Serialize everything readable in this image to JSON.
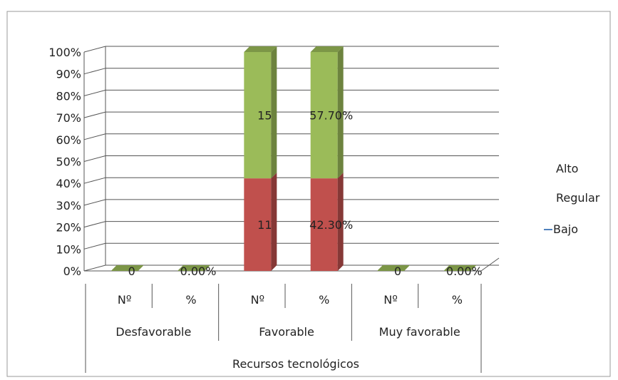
{
  "chart_data": {
    "type": "bar",
    "stacked": true,
    "style": "3d-stacked-column",
    "ylim": [
      0,
      100
    ],
    "y_ticks": [
      "0%",
      "10%",
      "20%",
      "30%",
      "40%",
      "50%",
      "60%",
      "70%",
      "80%",
      "90%",
      "100%"
    ],
    "categories": [
      {
        "group": "Desfavorable",
        "sub": "Nº"
      },
      {
        "group": "Desfavorable",
        "sub": "%"
      },
      {
        "group": "Favorable",
        "sub": "Nº"
      },
      {
        "group": "Favorable",
        "sub": "%"
      },
      {
        "group": "Muy favorable",
        "sub": "Nº"
      },
      {
        "group": "Muy favorable",
        "sub": "%"
      }
    ],
    "groups": [
      "Desfavorable",
      "Favorable",
      "Muy favorable"
    ],
    "sub_labels": [
      "Nº",
      "%",
      "Nº",
      "%",
      "Nº",
      "%"
    ],
    "xlabel": "Recursos tecnológicos",
    "series": [
      {
        "name": "Bajo",
        "values": [
          0,
          0,
          0,
          0,
          0,
          0
        ]
      },
      {
        "name": "Regular",
        "values": [
          0,
          0,
          42.3,
          42.3,
          0,
          0
        ],
        "color": "#c0504d"
      },
      {
        "name": "Alto",
        "values": [
          0,
          0,
          57.7,
          57.7,
          0,
          0
        ],
        "color": "#9bbb59"
      }
    ],
    "data_labels": [
      {
        "category_index": 0,
        "text": "0"
      },
      {
        "category_index": 1,
        "text": "0.00%"
      },
      {
        "category_index": 2,
        "series": "Regular",
        "text": "11"
      },
      {
        "category_index": 2,
        "series": "Alto",
        "text": "15"
      },
      {
        "category_index": 3,
        "series": "Regular",
        "text": "42.30%"
      },
      {
        "category_index": 3,
        "series": "Alto",
        "text": "57.70%"
      },
      {
        "category_index": 4,
        "text": "0"
      },
      {
        "category_index": 5,
        "text": "0.00%"
      }
    ],
    "legend": {
      "position": "right",
      "entries": [
        {
          "name": "Alto",
          "marker": "none"
        },
        {
          "name": "Regular",
          "marker": "none"
        },
        {
          "name": "Bajo",
          "marker": "line",
          "color": "#4f81bd"
        }
      ]
    },
    "grid": true
  }
}
